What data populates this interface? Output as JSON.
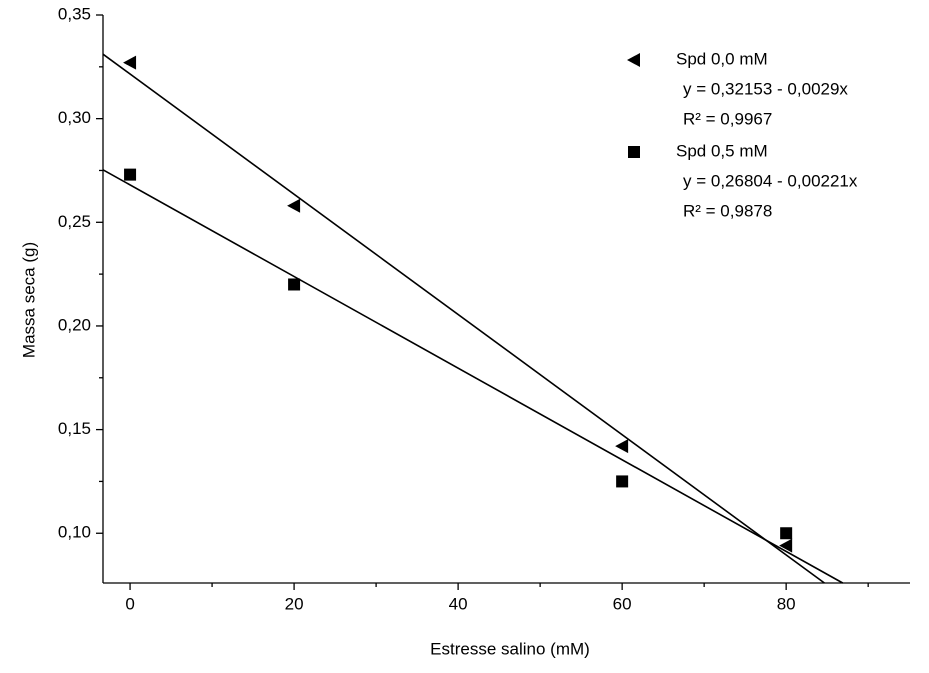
{
  "chart_data": {
    "type": "scatter",
    "x_label": "Estresse salino (mM)",
    "y_label": "Massa seca (g)",
    "xlim": [
      -3.3,
      95.1
    ],
    "ylim": [
      0.076,
      0.35
    ],
    "xticks": [
      0,
      20,
      40,
      60,
      80
    ],
    "xminorticks": [
      10,
      30,
      50,
      70,
      90
    ],
    "yticks": [
      {
        "value": 0.1,
        "label": "0,10"
      },
      {
        "value": 0.15,
        "label": "0,15"
      },
      {
        "value": 0.2,
        "label": "0,20"
      },
      {
        "value": 0.25,
        "label": "0,25"
      },
      {
        "value": 0.3,
        "label": "0,30"
      },
      {
        "value": 0.35,
        "label": "0,35"
      }
    ],
    "yminorticks": [
      0.125,
      0.175,
      0.225,
      0.275,
      0.325
    ],
    "series": [
      {
        "name": "Spd 0,0 mM",
        "marker": "triangle-left",
        "color": "#000000",
        "x": [
          0,
          20,
          60,
          80
        ],
        "values": [
          0.327,
          0.258,
          0.142,
          0.094
        ],
        "fit": {
          "intercept": 0.32153,
          "slope": -0.0029
        },
        "fit_label": "y = 0,32153 - 0,0029x",
        "r2_label": "R² = 0,9967"
      },
      {
        "name": "Spd 0,5 mM",
        "marker": "square",
        "color": "#000000",
        "x": [
          0,
          20,
          60,
          80
        ],
        "values": [
          0.273,
          0.22,
          0.125,
          0.1
        ],
        "fit": {
          "intercept": 0.26804,
          "slope": -0.00221
        },
        "fit_label": "y = 0,26804 - 0,00221x",
        "r2_label": "R² = 0,9878"
      }
    ]
  }
}
